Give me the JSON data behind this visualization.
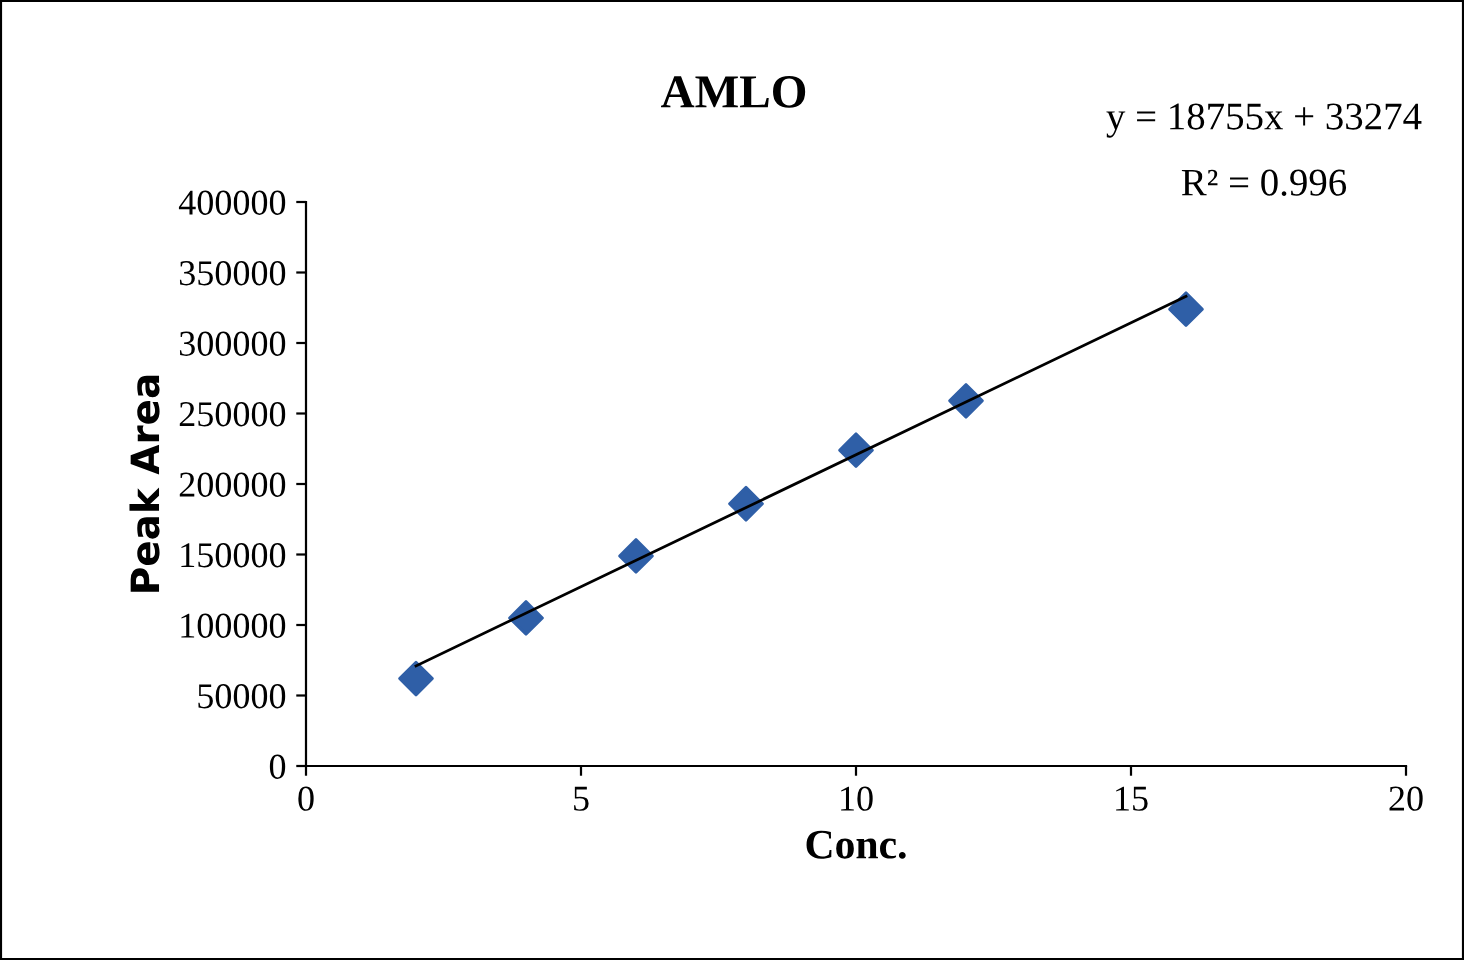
{
  "chart_data": {
    "type": "scatter",
    "title": "AMLO",
    "xlabel": "Conc.",
    "ylabel": "Peak Area",
    "annotations": [
      "y = 18755x + 33274",
      "R² = 0.996"
    ],
    "series": [
      {
        "color": "#2f5fa7",
        "marker": "diamond",
        "x": [
          2,
          4,
          6,
          8,
          10,
          12,
          16
        ],
        "values": [
          62000,
          105000,
          149000,
          186000,
          224000,
          259000,
          324000
        ]
      },
      {
        "type": "line",
        "color": "#000000",
        "marker": "none",
        "x": [
          2,
          16
        ],
        "values": [
          71000,
          333000
        ]
      }
    ],
    "xlim": [
      0,
      20
    ],
    "xticks": [
      0,
      5,
      10,
      15,
      20
    ],
    "ylim": [
      0,
      400000
    ],
    "yticks": [
      0,
      50000,
      100000,
      150000,
      200000,
      250000,
      300000,
      350000,
      400000
    ],
    "grid": false,
    "legend": false
  }
}
